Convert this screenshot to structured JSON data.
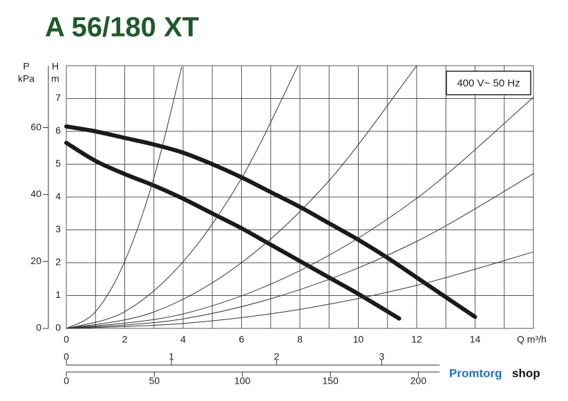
{
  "chart_data": {
    "type": "line",
    "title": "A 56/180 XT",
    "annotation": "400 V~ 50 Hz",
    "xlabel": "Q m³/h",
    "ylabel": [
      "H",
      "m"
    ],
    "xlim": [
      0,
      16
    ],
    "ylim": [
      0,
      8
    ],
    "xticks": [
      0,
      2,
      4,
      6,
      8,
      10,
      12,
      14
    ],
    "yticks": [
      0,
      1,
      2,
      3,
      4,
      5,
      6,
      7
    ],
    "xgrid": [
      0,
      1,
      2,
      3,
      4,
      5,
      6,
      7,
      8,
      9,
      10,
      11,
      12,
      13,
      14,
      15,
      16
    ],
    "ygrid": [
      0,
      1,
      2,
      3,
      4,
      5,
      6,
      7,
      8
    ],
    "grid": true,
    "p_axis": {
      "label": [
        "P",
        "kPa"
      ],
      "lim": [
        0,
        78.5
      ],
      "ticks": [
        0,
        20,
        40,
        60
      ]
    },
    "ls_axis": {
      "lim": [
        0,
        3.55
      ],
      "ticks": [
        0,
        1,
        2,
        3
      ]
    },
    "lmin_axis": {
      "lim": [
        0,
        212
      ],
      "ticks": [
        0,
        50,
        100,
        150,
        200
      ]
    },
    "series": [
      {
        "color": "#1a1a1a",
        "line_width": 6,
        "x": [
          0,
          1,
          2,
          3,
          4,
          5,
          6,
          7,
          8,
          9,
          10,
          11,
          12,
          13,
          14
        ],
        "values": [
          6.15,
          6.0,
          5.8,
          5.6,
          5.35,
          5.0,
          4.6,
          4.15,
          3.7,
          3.2,
          2.7,
          2.15,
          1.55,
          0.95,
          0.35
        ]
      },
      {
        "color": "#1a1a1a",
        "line_width": 6,
        "x": [
          0,
          1,
          2,
          3,
          4,
          5,
          6,
          7,
          8,
          9,
          10,
          11.4
        ],
        "values": [
          5.65,
          5.1,
          4.7,
          4.35,
          3.95,
          3.5,
          3.05,
          2.55,
          2.05,
          1.55,
          1.05,
          0.3
        ]
      },
      {
        "color": "#333333",
        "line_width": 1,
        "x": [
          0,
          1,
          2,
          3,
          3.95
        ],
        "values": [
          0,
          0.51,
          2.04,
          4.59,
          7.96
        ]
      },
      {
        "color": "#333333",
        "line_width": 1,
        "x": [
          0,
          2,
          4,
          6,
          7.95
        ],
        "values": [
          0,
          0.51,
          2.03,
          4.57,
          8.03
        ]
      },
      {
        "color": "#333333",
        "line_width": 1,
        "x": [
          0,
          3,
          6,
          9,
          12
        ],
        "values": [
          0,
          0.5,
          2,
          4.5,
          8
        ]
      },
      {
        "color": "#333333",
        "line_width": 1,
        "x": [
          0,
          4,
          8,
          12,
          16
        ],
        "values": [
          0,
          0.44,
          1.76,
          3.96,
          7.04
        ]
      },
      {
        "color": "#333333",
        "line_width": 1,
        "x": [
          0,
          4,
          8,
          12,
          16
        ],
        "values": [
          0,
          0.29,
          1.18,
          2.65,
          4.71
        ]
      },
      {
        "color": "#333333",
        "line_width": 1,
        "x": [
          0,
          4,
          8,
          12,
          16
        ],
        "values": [
          0,
          0.15,
          0.58,
          1.31,
          2.33
        ]
      }
    ]
  },
  "brand": {
    "part1": "Promtorg",
    "part2": "shop"
  }
}
